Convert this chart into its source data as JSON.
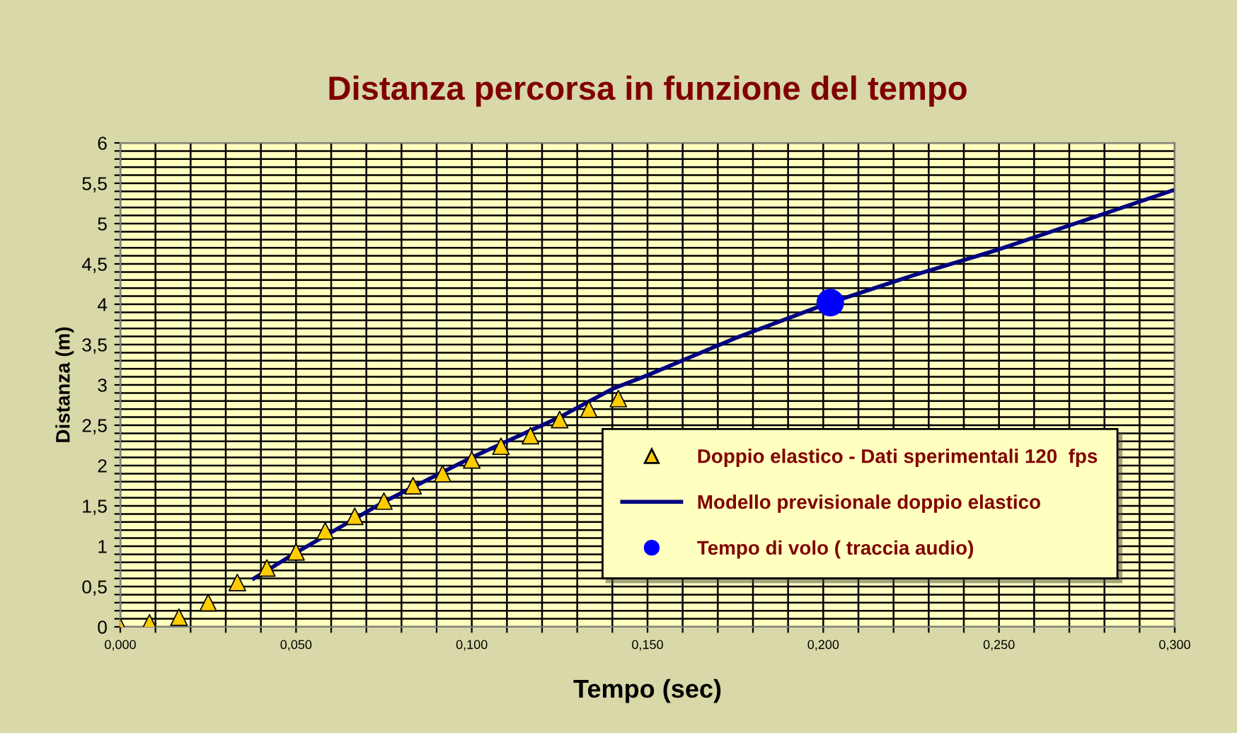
{
  "chart_data": {
    "type": "scatter",
    "title": "Distanza percorsa in funzione del tempo",
    "xlabel": "Tempo (sec)",
    "ylabel": "Distanza (m)",
    "xlim": [
      0,
      0.3
    ],
    "ylim": [
      0,
      6
    ],
    "xticks": [
      {
        "value": 0,
        "label": "0,000"
      },
      {
        "value": 0.01,
        "label": null
      },
      {
        "value": 0.02,
        "label": null
      },
      {
        "value": 0.03,
        "label": null
      },
      {
        "value": 0.04,
        "label": null
      },
      {
        "value": 0.05,
        "label": "0,050"
      },
      {
        "value": 0.06,
        "label": null
      },
      {
        "value": 0.07,
        "label": null
      },
      {
        "value": 0.08,
        "label": null
      },
      {
        "value": 0.09,
        "label": null
      },
      {
        "value": 0.1,
        "label": "0,100"
      },
      {
        "value": 0.11,
        "label": null
      },
      {
        "value": 0.12,
        "label": null
      },
      {
        "value": 0.13,
        "label": null
      },
      {
        "value": 0.14,
        "label": null
      },
      {
        "value": 0.15,
        "label": "0,150"
      },
      {
        "value": 0.16,
        "label": null
      },
      {
        "value": 0.17,
        "label": null
      },
      {
        "value": 0.18,
        "label": null
      },
      {
        "value": 0.19,
        "label": null
      },
      {
        "value": 0.2,
        "label": "0,200"
      },
      {
        "value": 0.21,
        "label": null
      },
      {
        "value": 0.22,
        "label": null
      },
      {
        "value": 0.23,
        "label": null
      },
      {
        "value": 0.24,
        "label": null
      },
      {
        "value": 0.25,
        "label": "0,250"
      },
      {
        "value": 0.26,
        "label": null
      },
      {
        "value": 0.27,
        "label": null
      },
      {
        "value": 0.28,
        "label": null
      },
      {
        "value": 0.29,
        "label": null
      },
      {
        "value": 0.3,
        "label": "0,300"
      }
    ],
    "yticks": [
      0,
      {
        "value": 0.1,
        "label": null
      },
      {
        "value": 0.2,
        "label": null
      },
      {
        "value": 0.3,
        "label": null
      },
      {
        "value": 0.4,
        "label": null
      },
      {
        "value": 0.5,
        "label": "0,5"
      },
      {
        "value": 0.6,
        "label": null
      },
      {
        "value": 0.7,
        "label": null
      },
      {
        "value": 0.8,
        "label": null
      },
      {
        "value": 0.9,
        "label": null
      },
      1,
      {
        "value": 1.1,
        "label": null
      },
      {
        "value": 1.2,
        "label": null
      },
      {
        "value": 1.3,
        "label": null
      },
      {
        "value": 1.4,
        "label": null
      },
      {
        "value": 1.5,
        "label": "1,5"
      },
      {
        "value": 1.6,
        "label": null
      },
      {
        "value": 1.7,
        "label": null
      },
      {
        "value": 1.8,
        "label": null
      },
      {
        "value": 1.9,
        "label": null
      },
      2,
      {
        "value": 2.1,
        "label": null
      },
      {
        "value": 2.2,
        "label": null
      },
      {
        "value": 2.3,
        "label": null
      },
      {
        "value": 2.4,
        "label": null
      },
      {
        "value": 2.5,
        "label": "2,5"
      },
      {
        "value": 2.6,
        "label": null
      },
      {
        "value": 2.7,
        "label": null
      },
      {
        "value": 2.8,
        "label": null
      },
      {
        "value": 2.9,
        "label": null
      },
      3,
      {
        "value": 3.1,
        "label": null
      },
      {
        "value": 3.2,
        "label": null
      },
      {
        "value": 3.3,
        "label": null
      },
      {
        "value": 3.4,
        "label": null
      },
      {
        "value": 3.5,
        "label": "3,5"
      },
      {
        "value": 3.6,
        "label": null
      },
      {
        "value": 3.7,
        "label": null
      },
      {
        "value": 3.8,
        "label": null
      },
      {
        "value": 3.9,
        "label": null
      },
      4,
      {
        "value": 4.1,
        "label": null
      },
      {
        "value": 4.2,
        "label": null
      },
      {
        "value": 4.3,
        "label": null
      },
      {
        "value": 4.4,
        "label": null
      },
      {
        "value": 4.5,
        "label": "4,5"
      },
      {
        "value": 4.6,
        "label": null
      },
      {
        "value": 4.7,
        "label": null
      },
      {
        "value": 4.8,
        "label": null
      },
      {
        "value": 4.9,
        "label": null
      },
      5,
      {
        "value": 5.1,
        "label": null
      },
      {
        "value": 5.2,
        "label": null
      },
      {
        "value": 5.3,
        "label": null
      },
      {
        "value": 5.4,
        "label": null
      },
      {
        "value": 5.5,
        "label": "5,5"
      },
      {
        "value": 5.6,
        "label": null
      },
      {
        "value": 5.7,
        "label": null
      },
      {
        "value": 5.8,
        "label": null
      },
      {
        "value": 5.9,
        "label": null
      },
      6
    ],
    "grid": true,
    "legend": "bottom right",
    "series": [
      {
        "name": "Doppio elastico - Dati sperimentali 120  fps",
        "marker": "triangle",
        "color": "#ffcc00",
        "x": [
          0,
          0.0083,
          0.0167,
          0.025,
          0.0333,
          0.0417,
          0.05,
          0.0583,
          0.0667,
          0.075,
          0.0833,
          0.0917,
          0.1,
          0.1083,
          0.1167,
          0.125,
          0.1333,
          0.1417
        ],
        "values": [
          0,
          0.05,
          0.12,
          0.3,
          0.55,
          0.73,
          0.93,
          1.19,
          1.37,
          1.56,
          1.75,
          1.9,
          2.07,
          2.24,
          2.37,
          2.57,
          2.7,
          2.83
        ]
      },
      {
        "name": "Modello previsionale doppio elastico",
        "type": "line",
        "marker": "none",
        "color": "#000080",
        "x": [
          0.038,
          0.05,
          0.075,
          0.1,
          0.125,
          0.14,
          0.15,
          0.175,
          0.2,
          0.225,
          0.25,
          0.275,
          0.3
        ],
        "values": [
          0.6,
          0.92,
          1.55,
          2.1,
          2.6,
          2.95,
          3.12,
          3.58,
          3.99,
          4.35,
          4.68,
          5.05,
          5.42
        ]
      },
      {
        "name": "Tempo di volo ( traccia audio)",
        "marker": "circle",
        "color": "#0000ff",
        "x": [
          0.202
        ],
        "values": [
          4.02
        ]
      }
    ]
  }
}
